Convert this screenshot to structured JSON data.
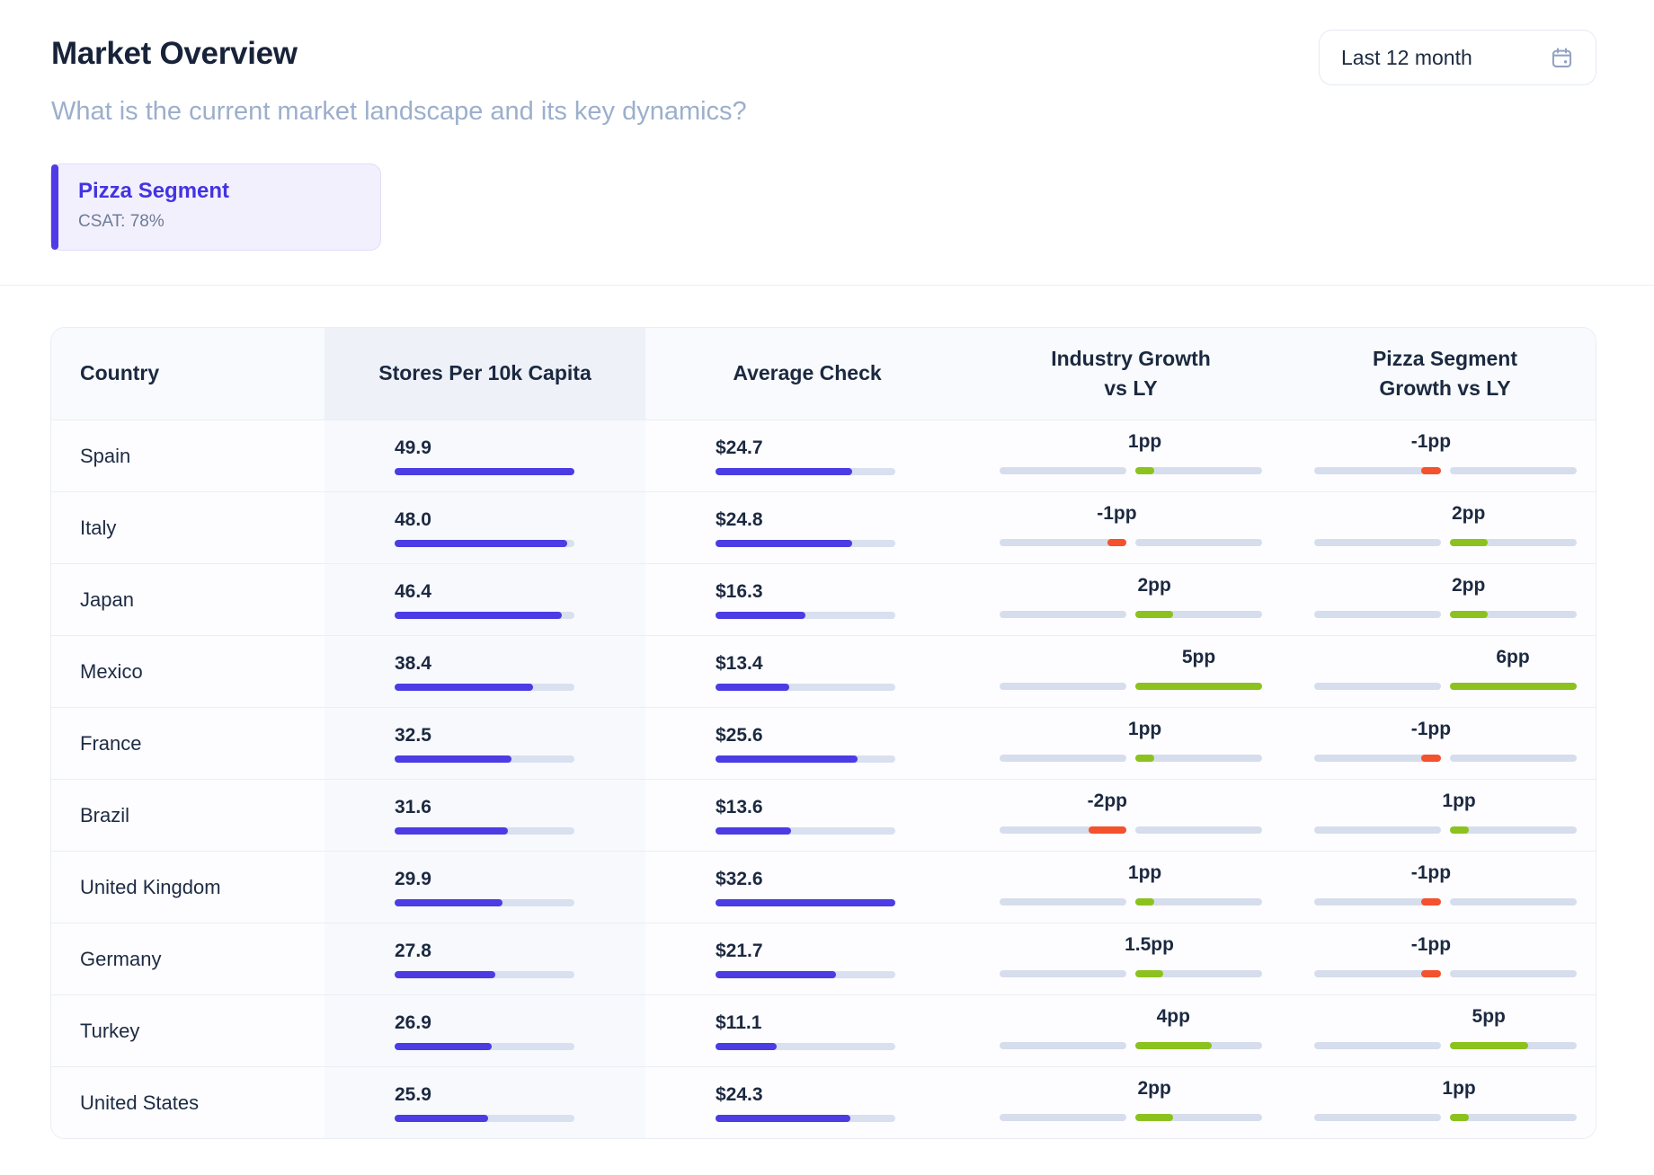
{
  "header": {
    "title": "Market Overview",
    "subtitle": "What is the current market landscape and its key dynamics?",
    "period_button": {
      "label": "Last 12 month",
      "icon": "calendar-icon"
    }
  },
  "segment_card": {
    "title": "Pizza Segment",
    "csat": "CSAT: 78%"
  },
  "colors": {
    "accent_indigo": "#4b3ce4",
    "positive_green": "#8cc21e",
    "negative_red": "#f4512d",
    "track_gray": "#d9e0ef",
    "card_purple_bg": "#f3f0fd",
    "title_navy": "#18233a",
    "subtitle_slate": "#9cafcc"
  },
  "table": {
    "columns": [
      {
        "label": "Country"
      },
      {
        "label": "Stores Per 10k Capita"
      },
      {
        "label": "Average Check"
      },
      {
        "label": "Industry Growth\nvs LY"
      },
      {
        "label": "Pizza Segment\nGrowth vs LY"
      }
    ],
    "scales": {
      "stores_max": 49.9,
      "check_max": 32.6
    },
    "rows": [
      {
        "country": "Spain",
        "stores": {
          "label": "49.9",
          "value": 49.9,
          "pct": 100
        },
        "check": {
          "label": "$24.7",
          "value": 24.7,
          "pct": 76
        },
        "industry": {
          "label": "1pp",
          "value": 1,
          "dir": "pos",
          "pct": 15
        },
        "pizza": {
          "label": "-1pp",
          "value": -1,
          "dir": "neg",
          "pct": 15
        }
      },
      {
        "country": "Italy",
        "stores": {
          "label": "48.0",
          "value": 48.0,
          "pct": 96
        },
        "check": {
          "label": "$24.8",
          "value": 24.8,
          "pct": 76
        },
        "industry": {
          "label": "-1pp",
          "value": -1,
          "dir": "neg",
          "pct": 15
        },
        "pizza": {
          "label": "2pp",
          "value": 2,
          "dir": "pos",
          "pct": 30
        }
      },
      {
        "country": "Japan",
        "stores": {
          "label": "46.4",
          "value": 46.4,
          "pct": 93
        },
        "check": {
          "label": "$16.3",
          "value": 16.3,
          "pct": 50
        },
        "industry": {
          "label": "2pp",
          "value": 2,
          "dir": "pos",
          "pct": 30
        },
        "pizza": {
          "label": "2pp",
          "value": 2,
          "dir": "pos",
          "pct": 30
        }
      },
      {
        "country": "Mexico",
        "stores": {
          "label": "38.4",
          "value": 38.4,
          "pct": 77
        },
        "check": {
          "label": "$13.4",
          "value": 13.4,
          "pct": 41
        },
        "industry": {
          "label": "5pp",
          "value": 5,
          "dir": "pos",
          "pct": 100
        },
        "pizza": {
          "label": "6pp",
          "value": 6,
          "dir": "pos",
          "pct": 100
        }
      },
      {
        "country": "France",
        "stores": {
          "label": "32.5",
          "value": 32.5,
          "pct": 65
        },
        "check": {
          "label": "$25.6",
          "value": 25.6,
          "pct": 79
        },
        "industry": {
          "label": "1pp",
          "value": 1,
          "dir": "pos",
          "pct": 15
        },
        "pizza": {
          "label": "-1pp",
          "value": -1,
          "dir": "neg",
          "pct": 15
        }
      },
      {
        "country": "Brazil",
        "stores": {
          "label": "31.6",
          "value": 31.6,
          "pct": 63
        },
        "check": {
          "label": "$13.6",
          "value": 13.6,
          "pct": 42
        },
        "industry": {
          "label": "-2pp",
          "value": -2,
          "dir": "neg",
          "pct": 30
        },
        "pizza": {
          "label": "1pp",
          "value": 1,
          "dir": "pos",
          "pct": 15
        }
      },
      {
        "country": "United Kingdom",
        "stores": {
          "label": "29.9",
          "value": 29.9,
          "pct": 60
        },
        "check": {
          "label": "$32.6",
          "value": 32.6,
          "pct": 100
        },
        "industry": {
          "label": "1pp",
          "value": 1,
          "dir": "pos",
          "pct": 15
        },
        "pizza": {
          "label": "-1pp",
          "value": -1,
          "dir": "neg",
          "pct": 15
        }
      },
      {
        "country": "Germany",
        "stores": {
          "label": "27.8",
          "value": 27.8,
          "pct": 56
        },
        "check": {
          "label": "$21.7",
          "value": 21.7,
          "pct": 67
        },
        "industry": {
          "label": "1.5pp",
          "value": 1.5,
          "dir": "pos",
          "pct": 22
        },
        "pizza": {
          "label": "-1pp",
          "value": -1,
          "dir": "neg",
          "pct": 15
        }
      },
      {
        "country": "Turkey",
        "stores": {
          "label": "26.9",
          "value": 26.9,
          "pct": 54
        },
        "check": {
          "label": "$11.1",
          "value": 11.1,
          "pct": 34
        },
        "industry": {
          "label": "4pp",
          "value": 4,
          "dir": "pos",
          "pct": 60
        },
        "pizza": {
          "label": "5pp",
          "value": 5,
          "dir": "pos",
          "pct": 62
        }
      },
      {
        "country": "United States",
        "stores": {
          "label": "25.9",
          "value": 25.9,
          "pct": 52
        },
        "check": {
          "label": "$24.3",
          "value": 24.3,
          "pct": 75
        },
        "industry": {
          "label": "2pp",
          "value": 2,
          "dir": "pos",
          "pct": 30
        },
        "pizza": {
          "label": "1pp",
          "value": 1,
          "dir": "pos",
          "pct": 15
        }
      }
    ]
  }
}
